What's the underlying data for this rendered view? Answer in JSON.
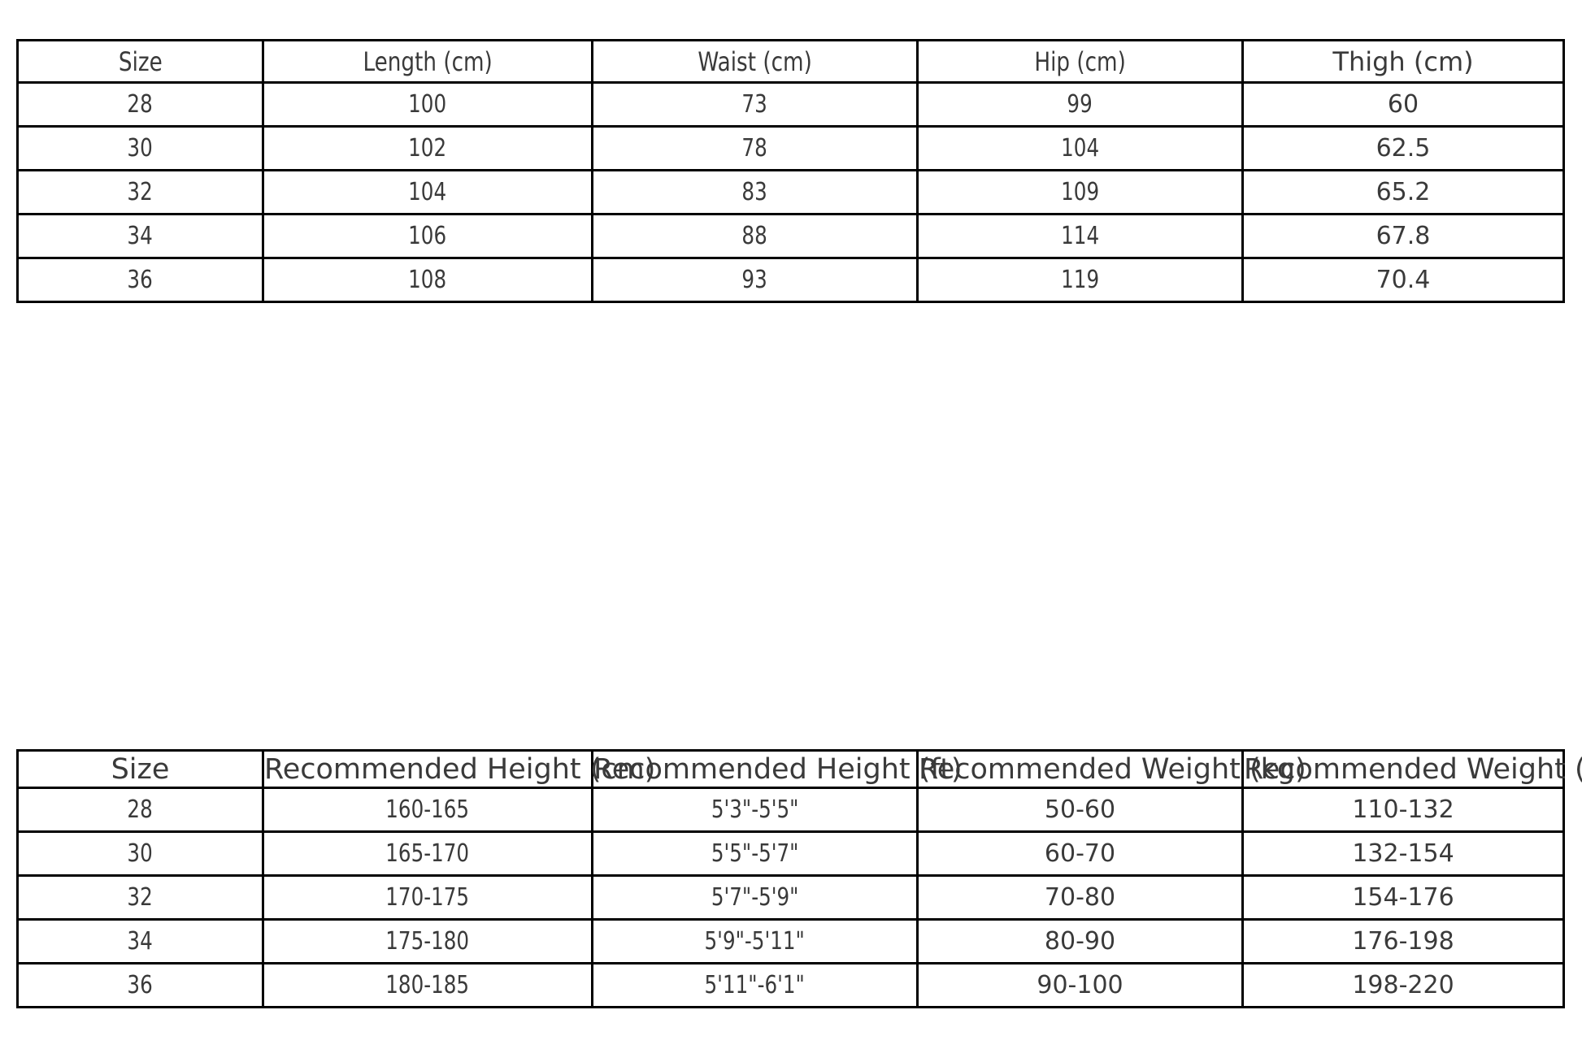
{
  "page": {
    "background_color": "#ffffff",
    "text_color": "#3a3a3a",
    "border_color": "#000000"
  },
  "chart_data": [
    {
      "type": "table",
      "name": "size-measurement-table",
      "columns": [
        "Size",
        "Length (cm)",
        "Waist (cm)",
        "Hip (cm)",
        "Thigh (cm)"
      ],
      "rows": [
        [
          "28",
          "100",
          "73",
          "99",
          "60"
        ],
        [
          "30",
          "102",
          "78",
          "104",
          "62.5"
        ],
        [
          "32",
          "104",
          "83",
          "109",
          "65.2"
        ],
        [
          "34",
          "106",
          "88",
          "114",
          "67.8"
        ],
        [
          "36",
          "108",
          "93",
          "119",
          "70.4"
        ]
      ]
    },
    {
      "type": "table",
      "name": "height-weight-recommendation-table",
      "columns": [
        "Size",
        "Recommended Height (cm)",
        "Recommended Height (ft)",
        "Recommended Weight (kg)",
        "Recommended Weight (lbs)"
      ],
      "rows": [
        [
          "28",
          "160-165",
          "5'3\"-5'5\"",
          "50-60",
          "110-132"
        ],
        [
          "30",
          "165-170",
          "5'5\"-5'7\"",
          "60-70",
          "132-154"
        ],
        [
          "32",
          "170-175",
          "5'7\"-5'9\"",
          "70-80",
          "154-176"
        ],
        [
          "34",
          "175-180",
          "5'9\"-5'11\"",
          "80-90",
          "176-198"
        ],
        [
          "36",
          "180-185",
          "5'11\"-6'1\"",
          "90-100",
          "198-220"
        ]
      ]
    }
  ]
}
